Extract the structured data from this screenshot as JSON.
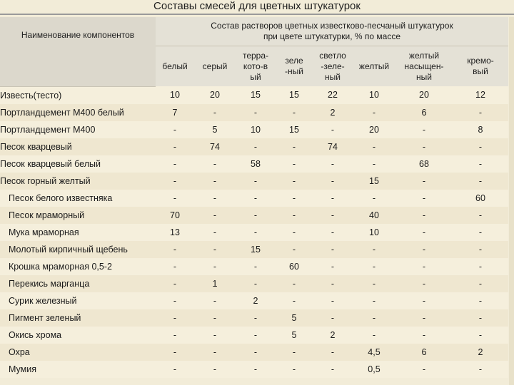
{
  "title": "Составы смесей для цветных штукатурок",
  "header": {
    "component_col": "Наименование компонентов",
    "group": "Состав растворов цветных известково-песчаный штукатурок при цвете штукатурки, % по массе",
    "colors": [
      "белый",
      "серый",
      "терра-кото-вый",
      "зеле -ный",
      "светло -зеле-ный",
      "желтый",
      "желтый насыщен-ный",
      "кремо-вый"
    ]
  },
  "rows": [
    {
      "name": "Известь(тесто)",
      "v": [
        "10",
        "20",
        "15",
        "15",
        "22",
        "10",
        "20",
        "12"
      ]
    },
    {
      "name": "Портландцемент М400 белый",
      "v": [
        "7",
        "-",
        "-",
        "-",
        "2",
        "-",
        "6",
        "-"
      ]
    },
    {
      "name": "Портландцемент М400",
      "v": [
        "-",
        "5",
        "10",
        "15",
        "-",
        "20",
        "-",
        "8"
      ]
    },
    {
      "name": "Песок кварцевый",
      "v": [
        "-",
        "74",
        "-",
        "-",
        "74",
        "-",
        "-",
        "-"
      ]
    },
    {
      "name": "Песок кварцевый белый",
      "v": [
        "-",
        "-",
        "58",
        "-",
        "-",
        "-",
        "68",
        "-"
      ]
    },
    {
      "name": "Песок горный желтый",
      "v": [
        "-",
        "-",
        "-",
        "-",
        "-",
        "15",
        "-",
        "-"
      ]
    },
    {
      "name": "Песок белого известняка",
      "v": [
        "-",
        "-",
        "-",
        "-",
        "-",
        "-",
        "-",
        "60"
      ]
    },
    {
      "name": "Песок мраморный",
      "v": [
        "70",
        "-",
        "-",
        "-",
        "-",
        "40",
        "-",
        "-"
      ]
    },
    {
      "name": "Мука мраморная",
      "v": [
        "13",
        "-",
        "-",
        "-",
        "-",
        "10",
        "-",
        "-"
      ]
    },
    {
      "name": "Молотый кирпичный щебень",
      "v": [
        "-",
        "-",
        "15",
        "-",
        "-",
        "-",
        "-",
        "-"
      ]
    },
    {
      "name": "Крошка мраморная 0,5-2",
      "v": [
        "-",
        "-",
        "-",
        "60",
        "-",
        "-",
        "-",
        "-"
      ]
    },
    {
      "name": "Перекись марганца",
      "v": [
        "-",
        "1",
        "-",
        "-",
        "-",
        "-",
        "-",
        "-"
      ]
    },
    {
      "name": "Сурик железный",
      "v": [
        "-",
        "-",
        "2",
        "-",
        "-",
        "-",
        "-",
        "-"
      ]
    },
    {
      "name": "Пигмент зеленый",
      "v": [
        "-",
        "-",
        "-",
        "5",
        "-",
        "-",
        "-",
        "-"
      ]
    },
    {
      "name": "Окись хрома",
      "v": [
        "-",
        "-",
        "-",
        "5",
        "2",
        "-",
        "-",
        "-"
      ]
    },
    {
      "name": "Охра",
      "v": [
        "-",
        "-",
        "-",
        "-",
        "-",
        "4,5",
        "6",
        "2"
      ]
    },
    {
      "name": "Мумия",
      "v": [
        "-",
        "-",
        "-",
        "-",
        "-",
        "0,5",
        "-",
        "-"
      ]
    }
  ]
}
